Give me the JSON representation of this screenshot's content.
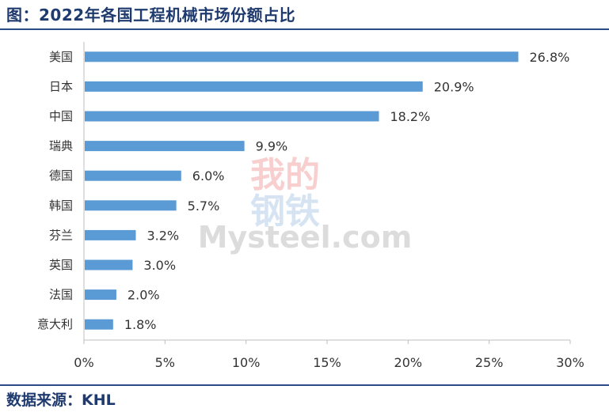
{
  "header": {
    "title": "图：2022年各国工程机械市场份额占比"
  },
  "footer": {
    "source": "数据来源：KHL"
  },
  "watermark": {
    "line1": "我的",
    "line2": "钢铁",
    "brand": "Mysteel.com"
  },
  "colors": {
    "bar": "#5b9bd5",
    "rule": "#2b4a86",
    "title": "#1f3a6e"
  },
  "chart_data": {
    "type": "bar",
    "orientation": "horizontal",
    "categories": [
      "美国",
      "日本",
      "中国",
      "瑞典",
      "德国",
      "韩国",
      "芬兰",
      "英国",
      "法国",
      "意大利"
    ],
    "values": [
      26.8,
      20.9,
      18.2,
      9.9,
      6.0,
      5.7,
      3.2,
      3.0,
      2.0,
      1.8
    ],
    "value_labels": [
      "26.8%",
      "20.9%",
      "18.2%",
      "9.9%",
      "6.0%",
      "5.7%",
      "3.2%",
      "3.0%",
      "2.0%",
      "1.8%"
    ],
    "xlim": [
      0,
      30
    ],
    "xticks": [
      0,
      5,
      10,
      15,
      20,
      25,
      30
    ],
    "xtick_labels": [
      "0%",
      "5%",
      "10%",
      "15%",
      "20%",
      "25%",
      "30%"
    ],
    "grid": false,
    "legend": "none"
  }
}
